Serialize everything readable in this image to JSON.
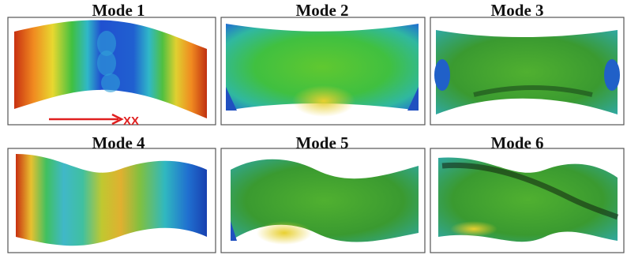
{
  "panels": [
    {
      "title": "Mode 1"
    },
    {
      "title": "Mode 2"
    },
    {
      "title": "Mode 3"
    },
    {
      "title": "Mode 4"
    },
    {
      "title": "Mode 5"
    },
    {
      "title": "Mode 6"
    }
  ],
  "axis_label": "XX"
}
